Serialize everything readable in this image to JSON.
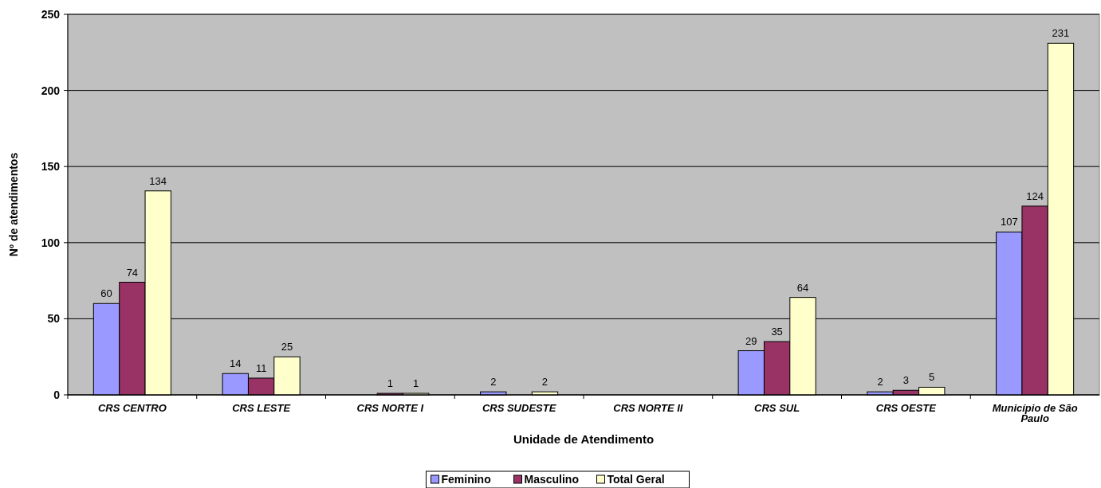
{
  "chart_data": {
    "type": "bar",
    "xlabel": "Unidade de Atendimento",
    "ylabel": "Nº de atendimentos",
    "categories": [
      "CRS CENTRO",
      "CRS LESTE",
      "CRS NORTE I",
      "CRS SUDESTE",
      "CRS NORTE II",
      "CRS SUL",
      "CRS OESTE",
      "Município de São Paulo"
    ],
    "series": [
      {
        "name": "Feminino",
        "color": "#9999ff",
        "values": [
          60,
          14,
          null,
          2,
          null,
          29,
          2,
          107
        ]
      },
      {
        "name": "Masculino",
        "color": "#993366",
        "values": [
          74,
          11,
          1,
          null,
          null,
          35,
          3,
          124
        ]
      },
      {
        "name": "Total Geral",
        "color": "#ffffcc",
        "values": [
          134,
          25,
          1,
          2,
          null,
          64,
          5,
          231
        ]
      }
    ],
    "ylim": [
      0,
      250
    ],
    "yticks": [
      0,
      50,
      100,
      150,
      200,
      250
    ],
    "grid": "y",
    "legend": "bottom",
    "data_labels": true
  }
}
